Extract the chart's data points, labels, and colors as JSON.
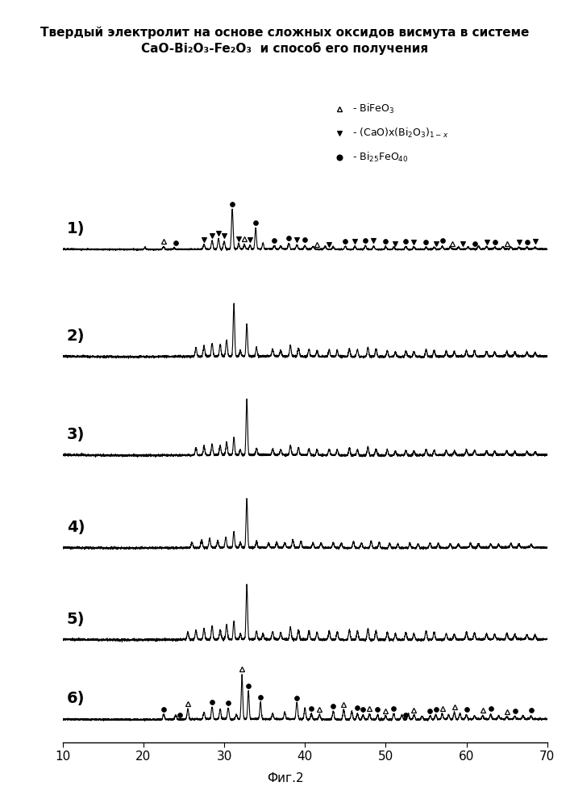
{
  "title_line1": "Твердый электролит на основе сложных оксидов висмута в системе",
  "title_line2": "CaO-Bi₂O₃-Fe₂O₃  и способ его получения",
  "fig_caption": "Фиг.2",
  "pattern_labels": [
    "1)",
    "2)",
    "3)",
    "4)",
    "5)",
    "6)"
  ],
  "xmin": 10,
  "xmax": 70,
  "xticks": [
    10,
    20,
    30,
    40,
    50,
    60,
    70
  ],
  "background_color": "#ffffff",
  "line_color": "#000000",
  "legend_items": [
    {
      "marker": "tri_up_open",
      "text": "- BiFeO₃"
    },
    {
      "marker": "tri_down_filled",
      "text": "- (CaO)x(Bi₂O₃)₁₋ₓ"
    },
    {
      "marker": "circle_filled",
      "text": "- Bi₂₅FeO₄₀"
    }
  ]
}
